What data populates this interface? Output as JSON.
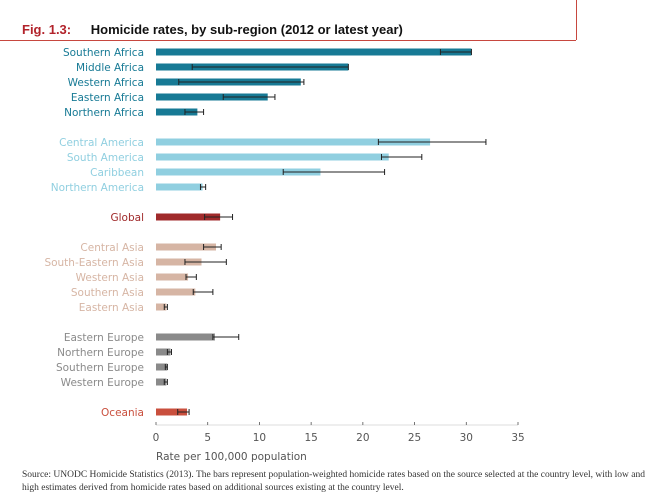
{
  "figure": {
    "number": "Fig. 1.3:",
    "title": "Homicide rates, by sub-region (2012 or latest year)"
  },
  "source_note": "Source: UNODC Homicide Statistics (2013). The bars represent population-weighted homicide rates based on the source selected at the country level, with low and high estimates derived from homicide rates based on additional sources existing at the country level.",
  "colors": {
    "africa": "#177a95",
    "americas": "#90cfe0",
    "global": "#a02a2b",
    "asia": "#d6b5a4",
    "europe": "#8a8a8a",
    "oceania": "#c94f3d",
    "error_bar": "#222222",
    "axis": "#555555",
    "gridline": "#dddddd"
  },
  "chart_data": {
    "type": "bar",
    "orientation": "horizontal",
    "title": "Homicide rates, by sub-region (2012 or latest year)",
    "xlabel": "Rate per 100,000 population",
    "ylabel": "",
    "xlim": [
      0,
      35
    ],
    "xticks": [
      0,
      5,
      10,
      15,
      20,
      25,
      30,
      35
    ],
    "grid": false,
    "error_bars": true,
    "groups": [
      {
        "region": "Africa",
        "color_key": "africa",
        "items": [
          {
            "label": "Southern Africa",
            "value": 30.5,
            "low": 27.5,
            "high": 30.5
          },
          {
            "label": "Middle Africa",
            "value": 18.6,
            "low": 3.5,
            "high": 18.6
          },
          {
            "label": "Western Africa",
            "value": 14.0,
            "low": 2.2,
            "high": 14.3
          },
          {
            "label": "Eastern Africa",
            "value": 10.8,
            "low": 6.5,
            "high": 11.5
          },
          {
            "label": "Northern Africa",
            "value": 4.0,
            "low": 2.8,
            "high": 4.6
          }
        ]
      },
      {
        "region": "Americas",
        "color_key": "americas",
        "items": [
          {
            "label": "Central America",
            "value": 26.5,
            "low": 21.5,
            "high": 31.9
          },
          {
            "label": "South America",
            "value": 22.5,
            "low": 21.8,
            "high": 25.7
          },
          {
            "label": "Caribbean",
            "value": 15.9,
            "low": 12.3,
            "high": 22.1
          },
          {
            "label": "Northern America",
            "value": 4.5,
            "low": 4.3,
            "high": 4.8
          }
        ]
      },
      {
        "region": "Global",
        "color_key": "global",
        "items": [
          {
            "label": "Global",
            "value": 6.2,
            "low": 4.7,
            "high": 7.4
          }
        ]
      },
      {
        "region": "Asia",
        "color_key": "asia",
        "items": [
          {
            "label": "Central Asia",
            "value": 5.8,
            "low": 4.6,
            "high": 6.3
          },
          {
            "label": "South-Eastern Asia",
            "value": 4.4,
            "low": 2.8,
            "high": 6.8
          },
          {
            "label": "Western Asia",
            "value": 3.1,
            "low": 2.9,
            "high": 3.9
          },
          {
            "label": "Southern Asia",
            "value": 3.8,
            "low": 3.6,
            "high": 5.5
          },
          {
            "label": "Eastern Asia",
            "value": 1.0,
            "low": 0.8,
            "high": 1.1
          }
        ]
      },
      {
        "region": "Europe",
        "color_key": "europe",
        "items": [
          {
            "label": "Eastern Europe",
            "value": 5.7,
            "low": 5.5,
            "high": 8.0
          },
          {
            "label": "Northern Europe",
            "value": 1.4,
            "low": 1.1,
            "high": 1.5
          },
          {
            "label": "Southern Europe",
            "value": 1.1,
            "low": 0.9,
            "high": 1.1
          },
          {
            "label": "Western Europe",
            "value": 1.0,
            "low": 0.8,
            "high": 1.1
          }
        ]
      },
      {
        "region": "Oceania",
        "color_key": "oceania",
        "items": [
          {
            "label": "Oceania",
            "value": 3.0,
            "low": 2.1,
            "high": 3.2
          }
        ]
      }
    ]
  }
}
